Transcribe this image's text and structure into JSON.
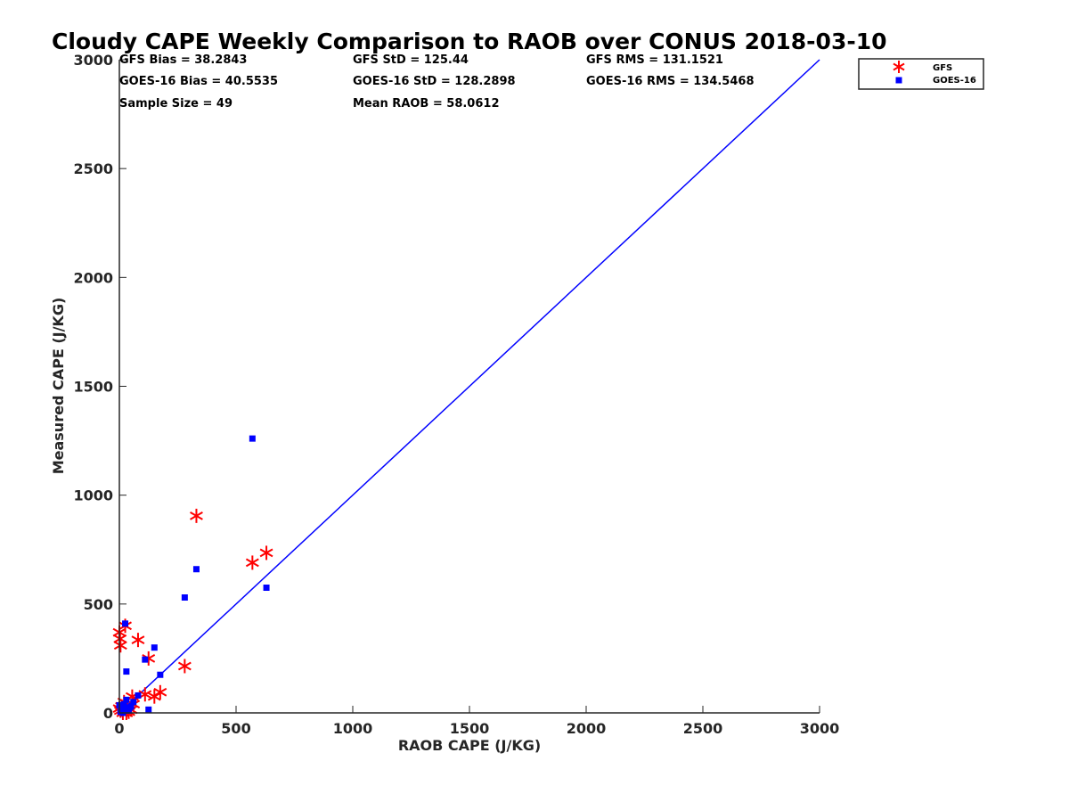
{
  "chart_data": {
    "type": "scatter",
    "title": "Cloudy CAPE Weekly Comparison to RAOB over CONUS 2018-03-10",
    "xlabel": "RAOB CAPE (J/KG)",
    "ylabel": "Measured CAPE (J/KG)",
    "xlim": [
      0,
      3000
    ],
    "ylim": [
      0,
      3000
    ],
    "xticks": [
      0,
      500,
      1000,
      1500,
      2000,
      2500,
      3000
    ],
    "yticks": [
      0,
      500,
      1000,
      1500,
      2000,
      2500,
      3000
    ],
    "grid": false,
    "legend_position": "outside-top-right",
    "reference_line": {
      "name": "1:1 line",
      "x": [
        0,
        3000
      ],
      "y": [
        0,
        3000
      ],
      "color": "#0000ff"
    },
    "stats": [
      "GFS Bias = 38.2843",
      "GFS StD = 125.44",
      "GFS RMS = 131.1521",
      "GOES-16 Bias = 40.5535",
      "GOES-16 StD = 128.2898",
      "GOES-16 RMS = 134.5468",
      "Sample Size = 49",
      "Mean RAOB = 58.0612"
    ],
    "series": [
      {
        "name": "GFS",
        "marker": "asterisk",
        "color": "#ff0000",
        "points": [
          [
            0,
            370
          ],
          [
            5,
            310
          ],
          [
            3,
            340
          ],
          [
            25,
            400
          ],
          [
            80,
            335
          ],
          [
            125,
            250
          ],
          [
            280,
            215
          ],
          [
            330,
            905
          ],
          [
            570,
            690
          ],
          [
            630,
            735
          ],
          [
            175,
            95
          ],
          [
            150,
            75
          ],
          [
            110,
            85
          ],
          [
            55,
            75
          ],
          [
            20,
            50
          ],
          [
            10,
            30
          ],
          [
            5,
            10
          ],
          [
            15,
            0
          ],
          [
            30,
            0
          ],
          [
            40,
            5
          ],
          [
            0,
            20
          ],
          [
            50,
            15
          ],
          [
            35,
            30
          ],
          [
            60,
            40
          ]
        ]
      },
      {
        "name": "GOES-16",
        "marker": "square",
        "color": "#0000ff",
        "points": [
          [
            25,
            410
          ],
          [
            30,
            190
          ],
          [
            110,
            245
          ],
          [
            150,
            300
          ],
          [
            175,
            175
          ],
          [
            280,
            530
          ],
          [
            330,
            660
          ],
          [
            570,
            1260
          ],
          [
            630,
            575
          ],
          [
            80,
            80
          ],
          [
            125,
            15
          ],
          [
            50,
            30
          ],
          [
            40,
            10
          ],
          [
            20,
            40
          ],
          [
            10,
            20
          ],
          [
            5,
            5
          ],
          [
            15,
            0
          ],
          [
            60,
            50
          ],
          [
            30,
            60
          ],
          [
            45,
            25
          ],
          [
            0,
            35
          ],
          [
            35,
            15
          ]
        ]
      }
    ]
  }
}
